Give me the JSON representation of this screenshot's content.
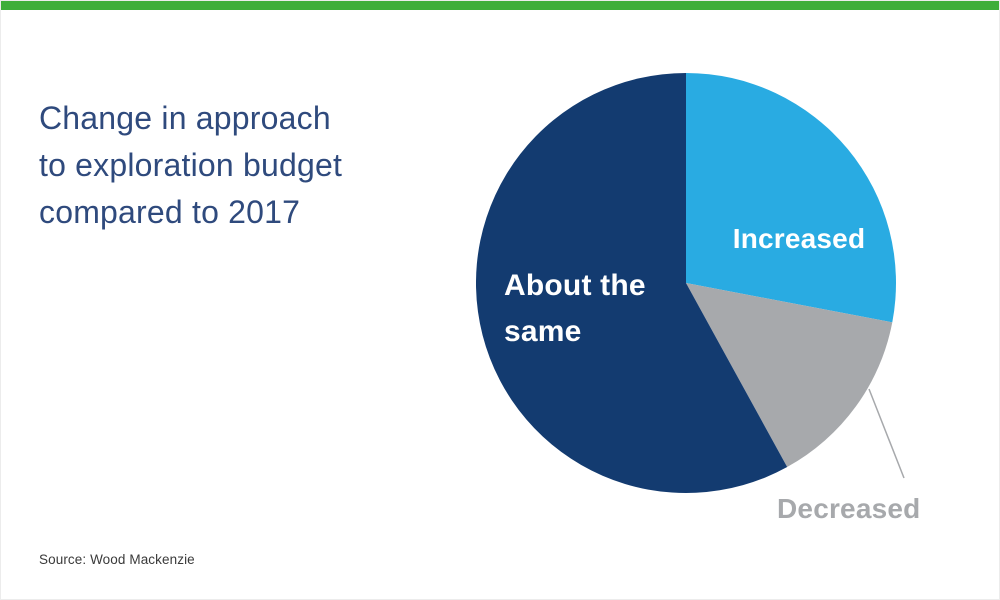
{
  "page": {
    "accent_bar_color": "#3eae3a",
    "background_color": "#ffffff"
  },
  "title": {
    "lines": [
      "Change in approach",
      "to exploration budget",
      "compared to 2017"
    ],
    "color": "#2f4a7d"
  },
  "source": {
    "text": "Source: Wood Mackenzie"
  },
  "chart_data": {
    "type": "pie",
    "title": "Change in approach to exploration budget compared to 2017",
    "start_angle_deg": 0,
    "direction": "clockwise",
    "values_are": "estimated percent share",
    "slices": [
      {
        "label": "Increased",
        "value": 28,
        "color": "#29abe2",
        "label_color": "#ffffff",
        "label_placement": "inside"
      },
      {
        "label": "Decreased",
        "value": 14,
        "color": "#a7a9ac",
        "label_color": "#a7a9ac",
        "label_placement": "outside-with-leader-line"
      },
      {
        "label": "About the same",
        "value": 58,
        "color": "#133b70",
        "label_color": "#ffffff",
        "label_placement": "inside"
      }
    ],
    "legend": "none",
    "source": "Source: Wood Mackenzie"
  }
}
